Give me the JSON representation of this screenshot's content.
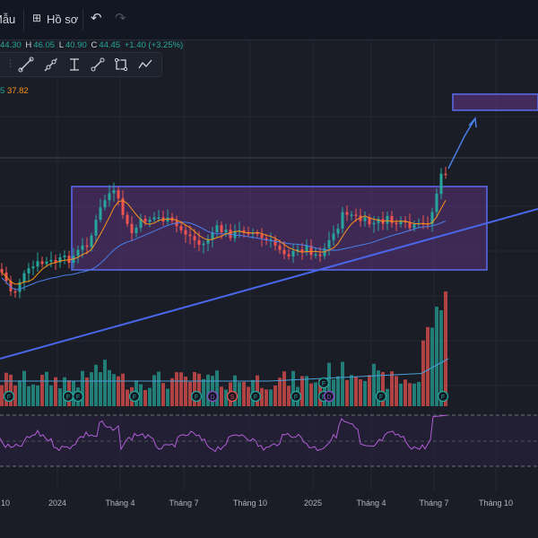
{
  "header": {
    "template_fragment": "Mẫu",
    "profile_label": "Hồ sơ",
    "profile_icon": "grid-icon",
    "undo_icon": "undo-icon",
    "redo_icon": "redo-icon"
  },
  "ohlc": {
    "h_label": "H",
    "h_value": "46.05",
    "l_label": "L",
    "l_value": "40.90",
    "c_label": "C",
    "c_value": "44.45",
    "change": "+1.40 (+3.25%)",
    "o_fragment": "44.30"
  },
  "indicator": {
    "value1_fragment": "5",
    "value2": "37.82"
  },
  "drawing_tools": [
    "trend-line-icon",
    "ray-icon",
    "info-line-icon",
    "extended-line-icon",
    "rectangle-icon",
    "path-icon"
  ],
  "signal_markers": {
    "f": "F",
    "d": "D",
    "s": "S"
  },
  "time_axis": [
    "10",
    "2024",
    "Tháng 4",
    "Tháng 7",
    "Tháng 10",
    "2025",
    "Tháng 4",
    "Tháng 7",
    "Tháng 10"
  ],
  "colors": {
    "up": "#26a69a",
    "down": "#ef5350",
    "rect_border": "#5b6cf0",
    "rect_fill": "#6b3a8f",
    "trendline": "#4a66e8",
    "ma_fast": "#f7931a",
    "ma_slow": "#4a7fe8",
    "rsi": "#b15dd6"
  }
}
